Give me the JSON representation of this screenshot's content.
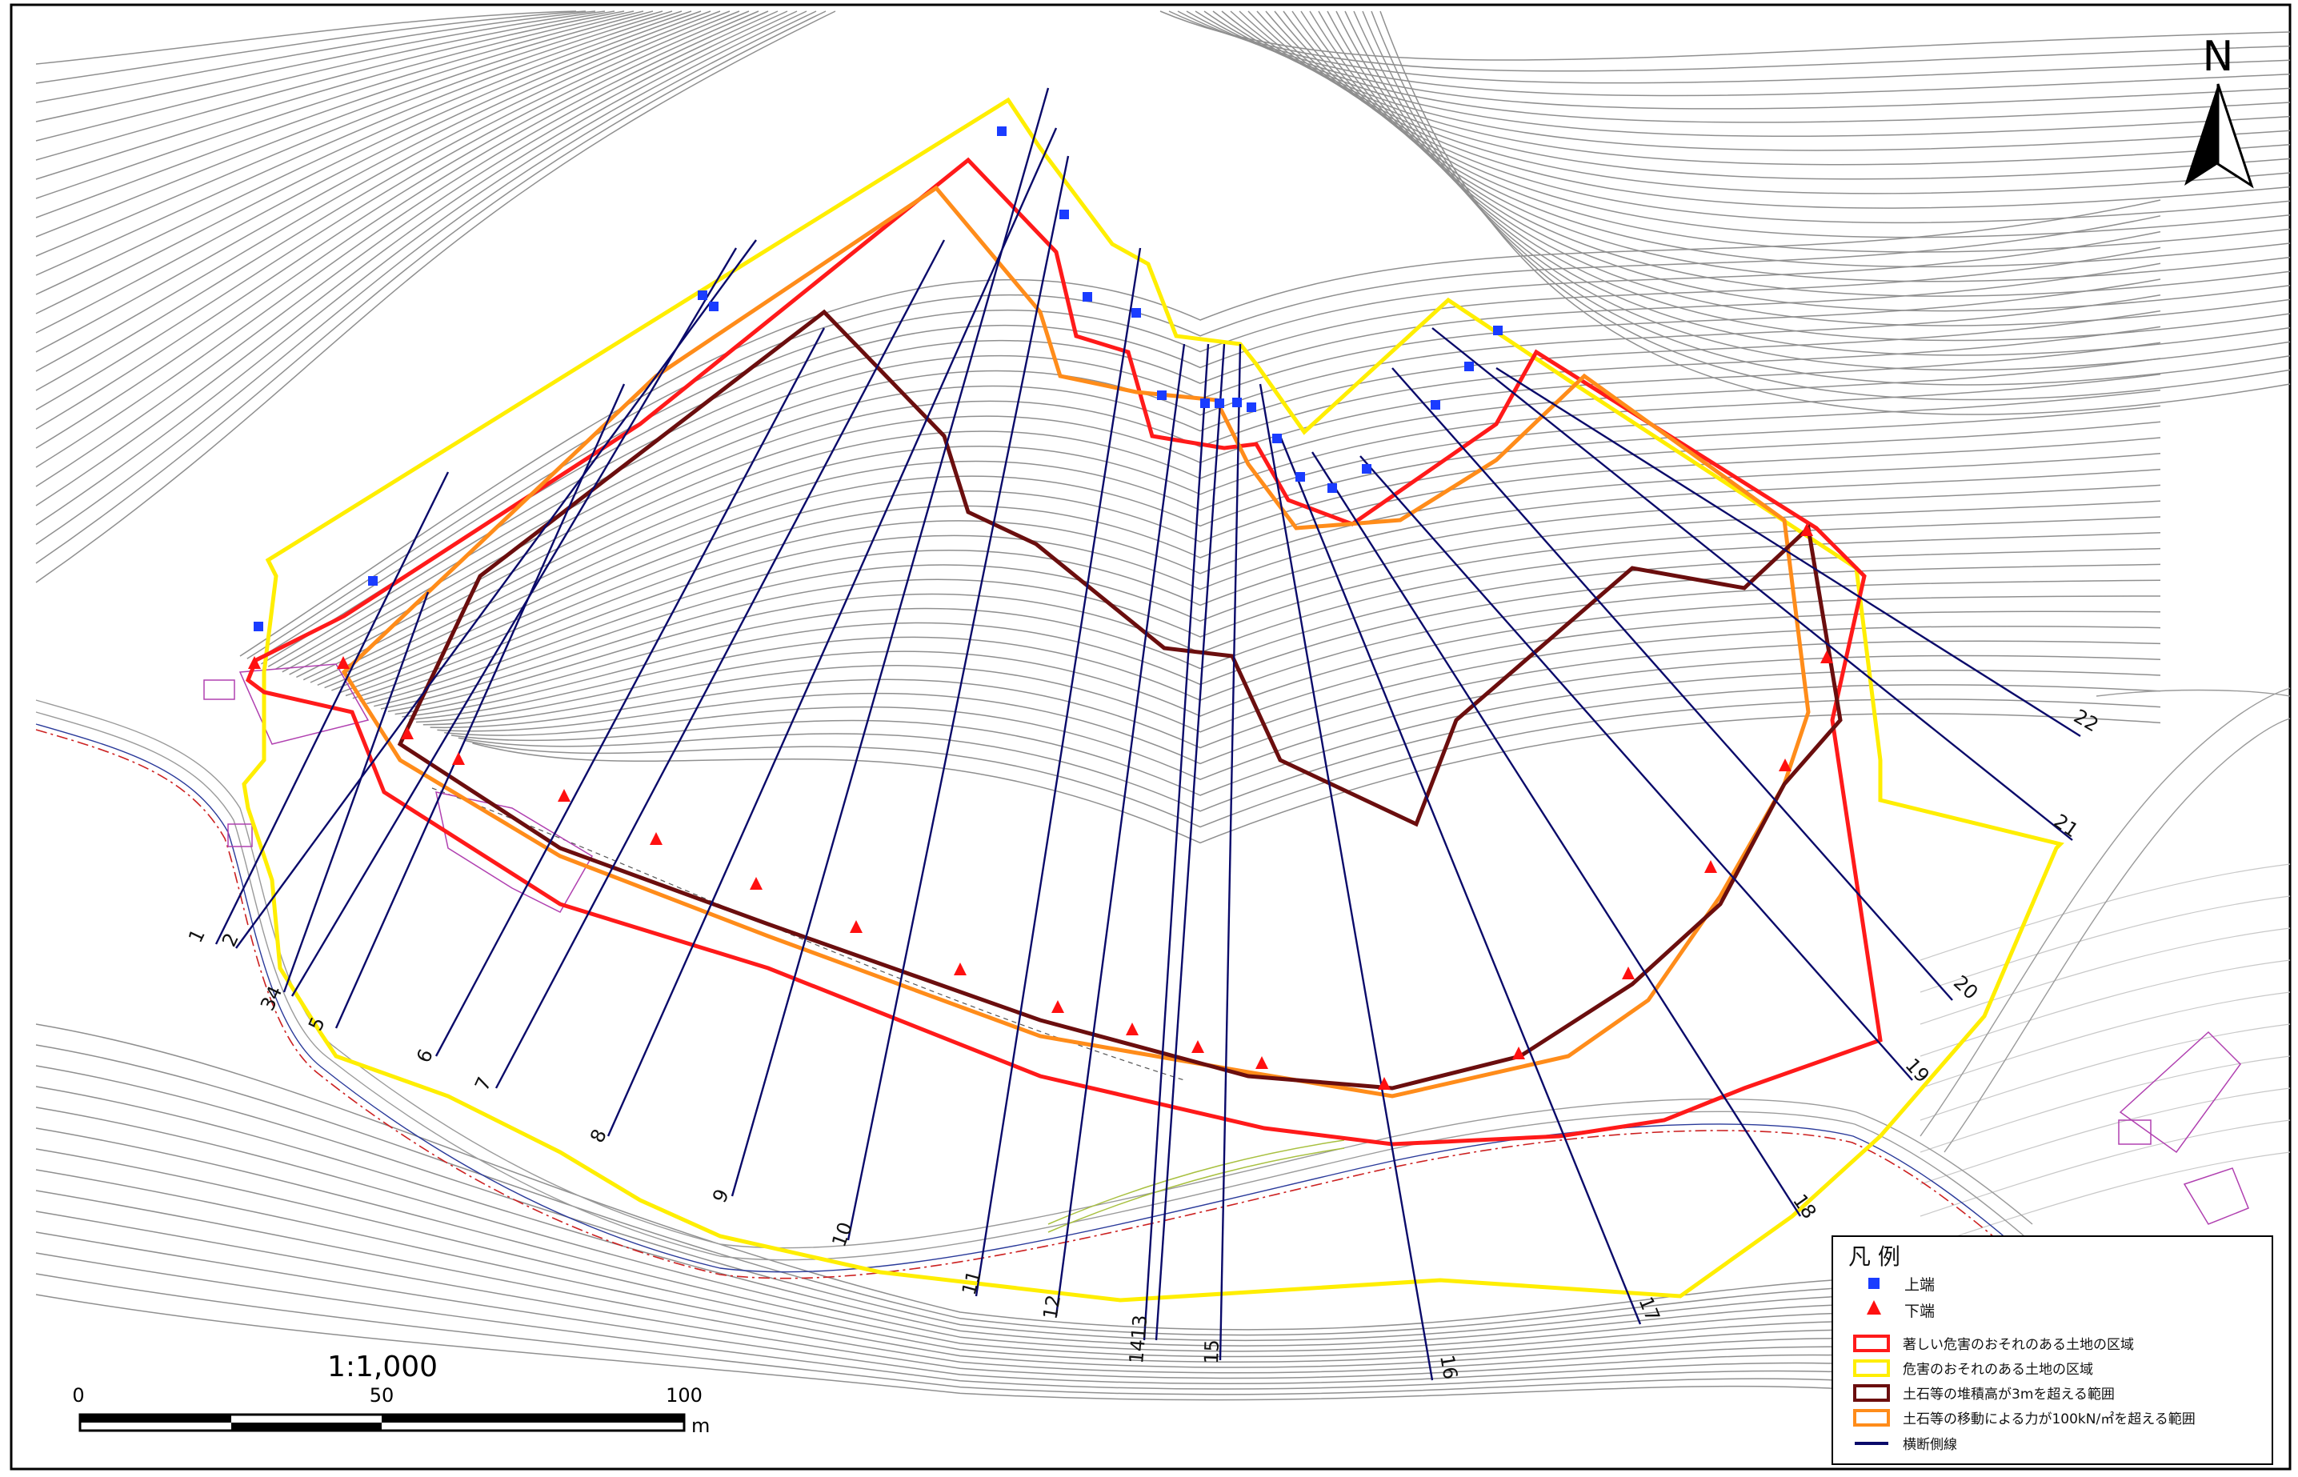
{
  "north_label": "N",
  "scale": {
    "ratio": "1:1,000",
    "ticks": [
      "0",
      "50",
      "100"
    ],
    "unit": "m"
  },
  "legend": {
    "title": "凡 例",
    "items": [
      {
        "symbol": "square",
        "color": "#1a3cff",
        "label": "上端"
      },
      {
        "symbol": "triangle",
        "color": "#ff1010",
        "label": "下端"
      },
      {
        "symbol": "box",
        "color": "#ff1a1a",
        "label": "著しい危害のおそれのある土地の区域"
      },
      {
        "symbol": "box",
        "color": "#ffee00",
        "label": "危害のおそれのある土地の区域"
      },
      {
        "symbol": "box",
        "color": "#6b0e0e",
        "label": "土石等の堆積高が3mを超える範囲"
      },
      {
        "symbol": "box",
        "color": "#ff8c1a",
        "label": "土石等の移動による力が100kN/㎡を超える範囲"
      },
      {
        "symbol": "line",
        "color": "#0a0a6a",
        "label": "横断側線"
      }
    ]
  },
  "cross_section_labels": [
    "1",
    "2",
    "34",
    "5",
    "6",
    "7",
    "8",
    "9",
    "10",
    "11",
    "12",
    "1413",
    "15",
    "16",
    "17",
    "18",
    "19",
    "20",
    "21",
    "22"
  ]
}
